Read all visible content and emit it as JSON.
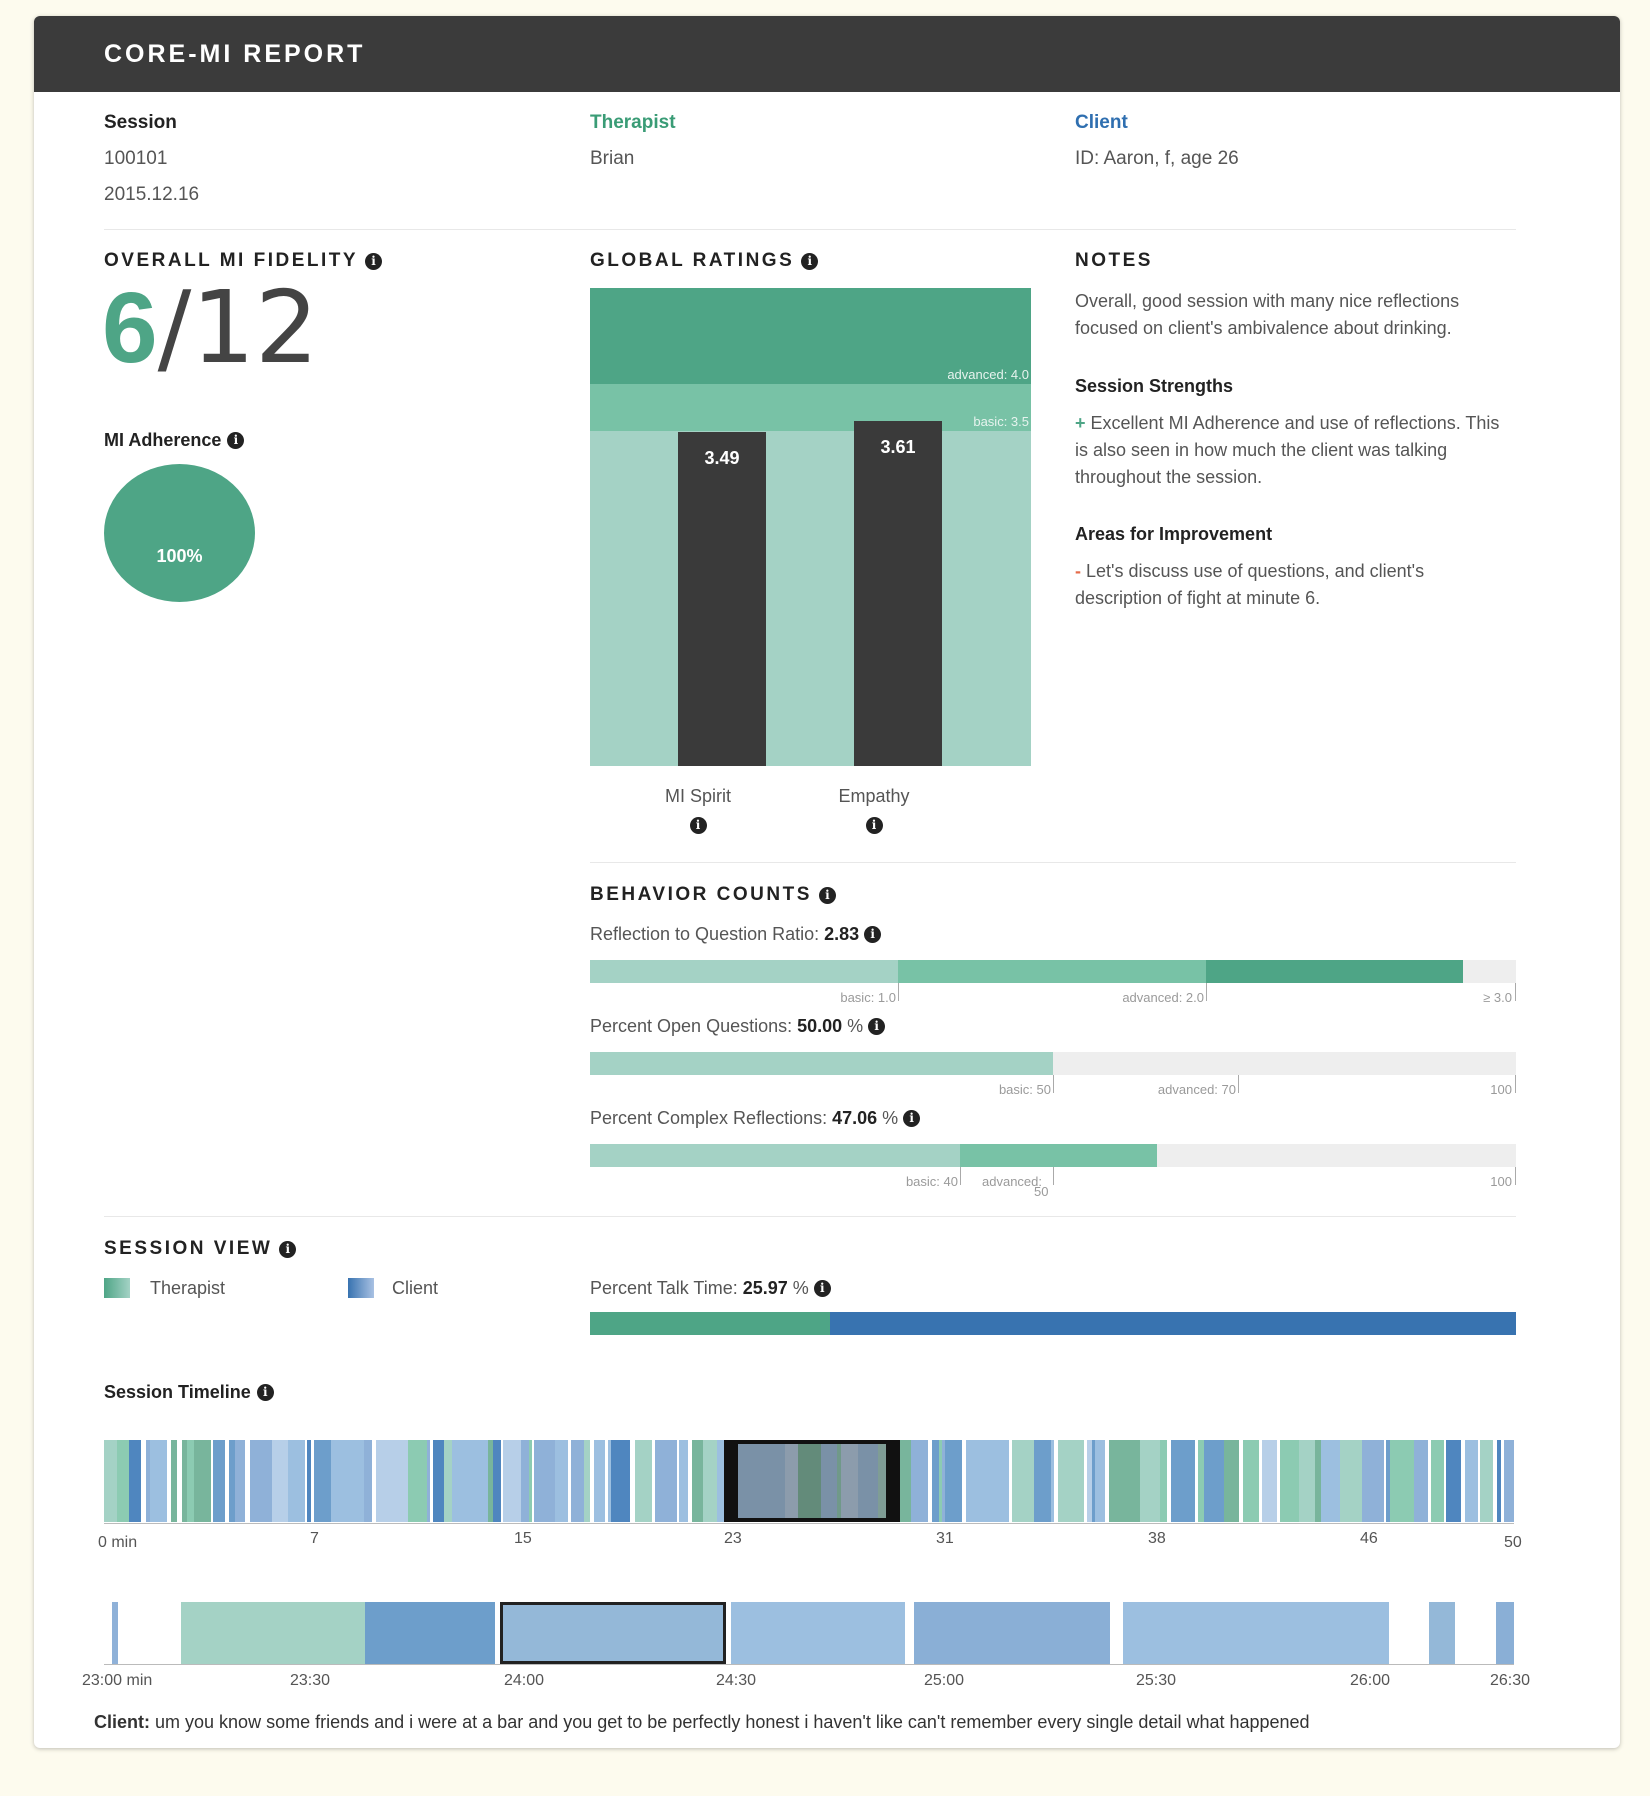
{
  "report_title": "CORE-MI REPORT",
  "header": {
    "session_label": "Session",
    "session_id": "100101",
    "session_date": "2015.12.16",
    "therapist_label": "Therapist",
    "therapist_name": "Brian",
    "client_label": "Client",
    "client_info": "ID: Aaron, f, age 26"
  },
  "fidelity": {
    "title": "OVERALL MI FIDELITY",
    "score": "6",
    "total": "/12"
  },
  "adherence": {
    "title": "MI Adherence",
    "value_label": "100%",
    "value": 100
  },
  "global_ratings": {
    "title": "GLOBAL RATINGS",
    "advanced_label": "advanced: 4.0",
    "basic_label": "basic: 3.5"
  },
  "chart_data": [
    {
      "type": "bar",
      "title": "GLOBAL RATINGS",
      "categories": [
        "MI Spirit",
        "Empathy"
      ],
      "values": [
        3.49,
        3.61
      ],
      "value_labels": [
        "3.49",
        "3.61"
      ],
      "ylim": [
        0,
        5
      ],
      "thresholds": {
        "basic": 3.5,
        "advanced": 4.0
      }
    }
  ],
  "notes": {
    "title": "NOTES",
    "summary": "Overall, good session with many nice reflections focused on client's ambivalence about drinking.",
    "strengths_title": "Session Strengths",
    "strengths_bullet": "+",
    "strengths_text": "Excellent MI Adherence and use of reflections. This is also seen in how much the client was talking throughout the session.",
    "improve_title": "Areas for Improvement",
    "improve_bullet": "-",
    "improve_text": "Let's discuss use of questions, and client's description of fight at minute 6."
  },
  "behavior": {
    "title": "BEHAVIOR COUNTS",
    "metrics": [
      {
        "label": "Reflection to Question Ratio:",
        "value": "2.83",
        "unit": "",
        "ticks": [
          "basic: 1.0",
          "advanced: 2.0",
          "≥ 3.0"
        ],
        "fraction": 0.943
      },
      {
        "label": "Percent Open Questions:",
        "value": "50.00",
        "unit": "%",
        "ticks": [
          "basic: 50",
          "advanced: 70",
          "100"
        ],
        "fraction": 0.5
      },
      {
        "label": "Percent Complex Reflections:",
        "value": "47.06",
        "unit": "%",
        "ticks": [
          "basic: 40",
          "advanced:",
          "50",
          "100"
        ],
        "fraction": 0.4706
      }
    ]
  },
  "session_view": {
    "title": "SESSION VIEW",
    "legend_therapist": "Therapist",
    "legend_client": "Client",
    "talk_label": "Percent Talk Time:",
    "talk_value": "25.97",
    "talk_unit": "%",
    "talk_fraction": 0.2597
  },
  "timeline": {
    "title": "Session Timeline",
    "axis": [
      "0 min",
      "7",
      "15",
      "23",
      "31",
      "38",
      "46",
      "50"
    ],
    "zoom_axis": [
      "23:00 min",
      "23:30",
      "24:00",
      "24:30",
      "25:00",
      "25:30",
      "26:00",
      "26:30"
    ],
    "speaker": "Client:",
    "utterance": "um you know some friends and i were at a bar and you get to be perfectly honest i haven't like can't remember every single detail what happened"
  },
  "colors": {
    "green_dark": "#4ea586",
    "green_mid": "#78c2a6",
    "green_light": "#a4d2c5",
    "client_blue": "#3873b0",
    "bar_dark": "#3a3a3a"
  }
}
